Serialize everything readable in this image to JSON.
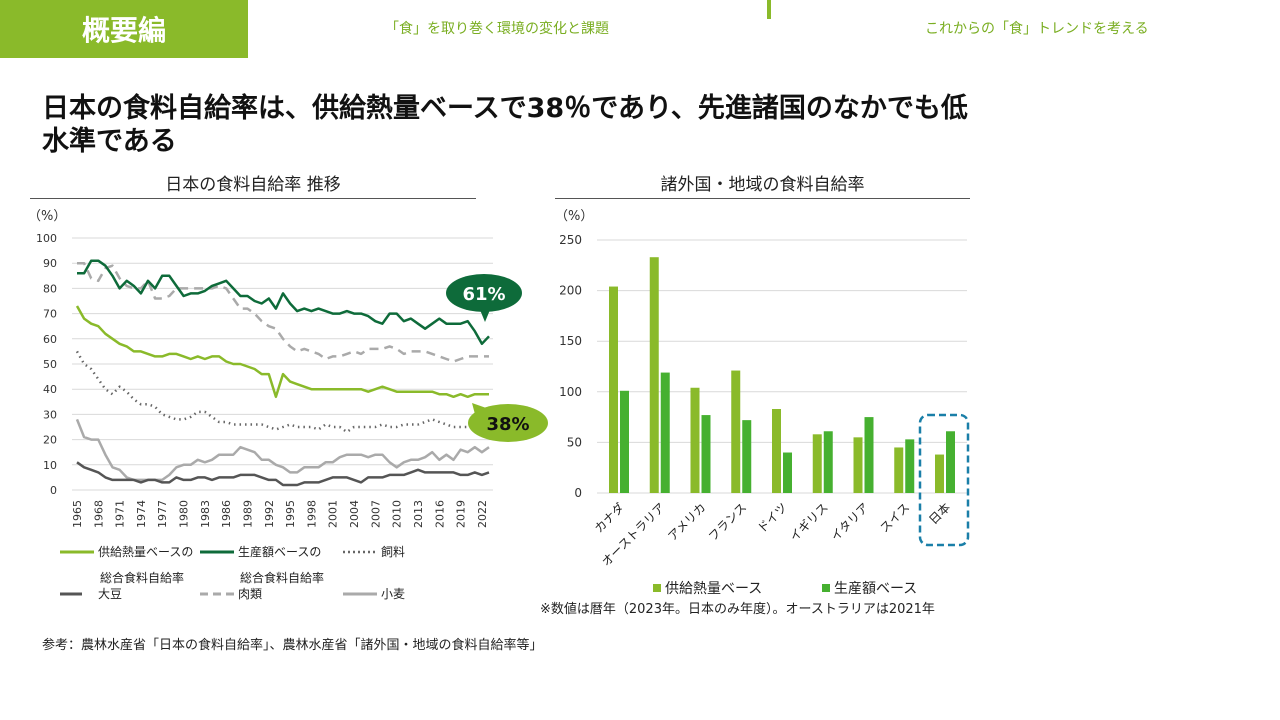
{
  "header": {
    "badge": "概要編",
    "nav": [
      "「食」を取り巻く環境の変化と課題",
      "これからの「食」トレンドを考える"
    ]
  },
  "headline": "日本の食料自給率は、供給熱量ベースで38％であり、先進諸国のなかでも低水準である",
  "colors": {
    "accent": "#8aba2a",
    "calorie": "#8aba2a",
    "production": "#0e6b3a",
    "production_bar": "#46b030",
    "feed": "#666666",
    "meat": "#aaaaaa",
    "wheat": "#aaaaaa",
    "soy": "#555555",
    "japan_box": "#1a7fa8"
  },
  "chart_data": [
    {
      "type": "line",
      "title": "日本の食料自給率 推移",
      "ylabel": "（%）",
      "ylim": [
        0,
        100
      ],
      "yticks": [
        0,
        10,
        20,
        30,
        40,
        50,
        60,
        70,
        80,
        90,
        100
      ],
      "grid": true,
      "xticks": [
        "1965",
        "1968",
        "1971",
        "1974",
        "1977",
        "1980",
        "1983",
        "1986",
        "1989",
        "1992",
        "1995",
        "1998",
        "2001",
        "2004",
        "2007",
        "2010",
        "2013",
        "2016",
        "2019",
        "2022"
      ],
      "x_start": 1965,
      "x_end": 2023,
      "series": [
        {
          "name": "供給熱量ベースの総合食料自給率",
          "style": "solid",
          "values": [
            73,
            68,
            66,
            65,
            62,
            60,
            58,
            57,
            55,
            55,
            54,
            53,
            53,
            54,
            54,
            53,
            52,
            53,
            52,
            53,
            53,
            51,
            50,
            50,
            49,
            48,
            46,
            46,
            37,
            46,
            43,
            42,
            41,
            40,
            40,
            40,
            40,
            40,
            40,
            40,
            40,
            39,
            40,
            41,
            40,
            39,
            39,
            39,
            39,
            39,
            39,
            38,
            38,
            37,
            38,
            37,
            38,
            38,
            38
          ]
        },
        {
          "name": "生産額ベースの総合食料自給率",
          "style": "solid",
          "values": [
            86,
            86,
            91,
            91,
            89,
            85,
            80,
            83,
            81,
            78,
            83,
            80,
            85,
            85,
            81,
            77,
            78,
            78,
            79,
            81,
            82,
            83,
            80,
            77,
            77,
            75,
            74,
            76,
            72,
            78,
            74,
            71,
            72,
            71,
            72,
            71,
            70,
            70,
            71,
            70,
            70,
            69,
            67,
            66,
            70,
            70,
            67,
            68,
            66,
            64,
            66,
            68,
            66,
            66,
            66,
            67,
            63,
            58,
            61
          ]
        },
        {
          "name": "飼料",
          "style": "dotted",
          "values": [
            55,
            50,
            48,
            44,
            40,
            38,
            41,
            39,
            36,
            34,
            34,
            33,
            30,
            29,
            28,
            28,
            29,
            31,
            31,
            29,
            27,
            27,
            26,
            26,
            26,
            26,
            26,
            25,
            24,
            25,
            26,
            25,
            25,
            25,
            24,
            26,
            25,
            25,
            23,
            25,
            25,
            25,
            25,
            26,
            25,
            25,
            26,
            26,
            26,
            27,
            28,
            27,
            26,
            25,
            25,
            25,
            25,
            26,
            27
          ]
        },
        {
          "name": "大豆",
          "style": "solid",
          "values": [
            11,
            9,
            8,
            7,
            5,
            4,
            4,
            4,
            4,
            3,
            4,
            4,
            3,
            3,
            5,
            4,
            4,
            5,
            5,
            4,
            5,
            5,
            5,
            6,
            6,
            6,
            5,
            4,
            4,
            2,
            2,
            2,
            3,
            3,
            3,
            4,
            5,
            5,
            5,
            4,
            3,
            5,
            5,
            5,
            6,
            6,
            6,
            7,
            8,
            7,
            7,
            7,
            7,
            7,
            6,
            6,
            7,
            6,
            7
          ]
        },
        {
          "name": "肉類",
          "style": "dashed",
          "values": [
            90,
            90,
            84,
            83,
            88,
            89,
            84,
            81,
            80,
            80,
            83,
            76,
            76,
            77,
            80,
            80,
            80,
            80,
            80,
            80,
            81,
            80,
            76,
            72,
            72,
            70,
            67,
            65,
            64,
            60,
            57,
            55,
            56,
            55,
            54,
            52,
            53,
            53,
            54,
            55,
            54,
            56,
            56,
            56,
            57,
            56,
            54,
            55,
            55,
            55,
            54,
            53,
            52,
            51,
            52,
            53,
            53,
            53,
            53
          ]
        },
        {
          "name": "小麦",
          "style": "solid",
          "values": [
            28,
            21,
            20,
            20,
            14,
            9,
            8,
            5,
            4,
            4,
            4,
            4,
            4,
            6,
            9,
            10,
            10,
            12,
            11,
            12,
            14,
            14,
            14,
            17,
            16,
            15,
            12,
            12,
            10,
            9,
            7,
            7,
            9,
            9,
            9,
            11,
            11,
            13,
            14,
            14,
            14,
            13,
            14,
            14,
            11,
            9,
            11,
            12,
            12,
            13,
            15,
            12,
            14,
            12,
            16,
            15,
            17,
            15,
            17
          ]
        }
      ],
      "annotations": [
        "61%",
        "38%"
      ]
    },
    {
      "type": "bar",
      "title": "諸外国・地域の食料自給率",
      "ylabel": "（%）",
      "ylim": [
        0,
        250
      ],
      "yticks": [
        0,
        50,
        100,
        150,
        200,
        250
      ],
      "grid": true,
      "categories": [
        "カナダ",
        "オーストラリア",
        "アメリカ",
        "フランス",
        "ドイツ",
        "イギリス",
        "イタリア",
        "スイス",
        "日本"
      ],
      "series": [
        {
          "name": "供給熱量ベース",
          "values": [
            204,
            233,
            104,
            121,
            83,
            58,
            55,
            45,
            38
          ]
        },
        {
          "name": "生産額ベース",
          "values": [
            101,
            119,
            77,
            72,
            40,
            61,
            75,
            53,
            61
          ]
        }
      ],
      "highlight": "日本",
      "note": "※数値は暦年（2023年。日本のみ年度）。オーストラリアは2021年"
    }
  ],
  "legend_left": [
    {
      "line1": "供給熱量ベースの",
      "line2": "総合食料自給率"
    },
    {
      "line1": "生産額ベースの",
      "line2": "総合食料自給率"
    },
    {
      "line1": "飼料"
    },
    {
      "line1": "大豆"
    },
    {
      "line1": "肉類"
    },
    {
      "line1": "小麦"
    }
  ],
  "source": "参考：農林水産省「日本の食料自給率」、農林水産省「諸外国・地域の食料自給率等」"
}
